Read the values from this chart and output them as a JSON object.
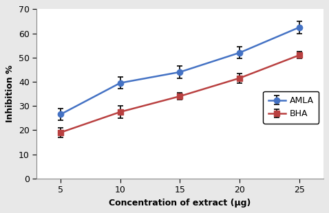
{
  "x": [
    5,
    10,
    15,
    20,
    25
  ],
  "amla_y": [
    26.5,
    39.5,
    44.0,
    52.0,
    62.5
  ],
  "amla_err": [
    2.5,
    2.5,
    2.5,
    2.5,
    2.5
  ],
  "bha_y": [
    19.0,
    27.5,
    34.0,
    41.5,
    51.0
  ],
  "bha_err": [
    2.0,
    2.5,
    1.5,
    2.0,
    1.5
  ],
  "amla_color": "#4472C4",
  "bha_color": "#B94040",
  "xlabel": "Concentration of extract (μg)",
  "ylabel": "Inhibition %",
  "xlim": [
    3,
    27
  ],
  "ylim": [
    0,
    70
  ],
  "yticks": [
    0,
    10,
    20,
    30,
    40,
    50,
    60,
    70
  ],
  "xticks": [
    5,
    10,
    15,
    20,
    25
  ],
  "legend_amla": "AMLA",
  "legend_bha": "BHA",
  "bg_color": "#FFFFFF",
  "fig_bg": "#E8E8E8"
}
